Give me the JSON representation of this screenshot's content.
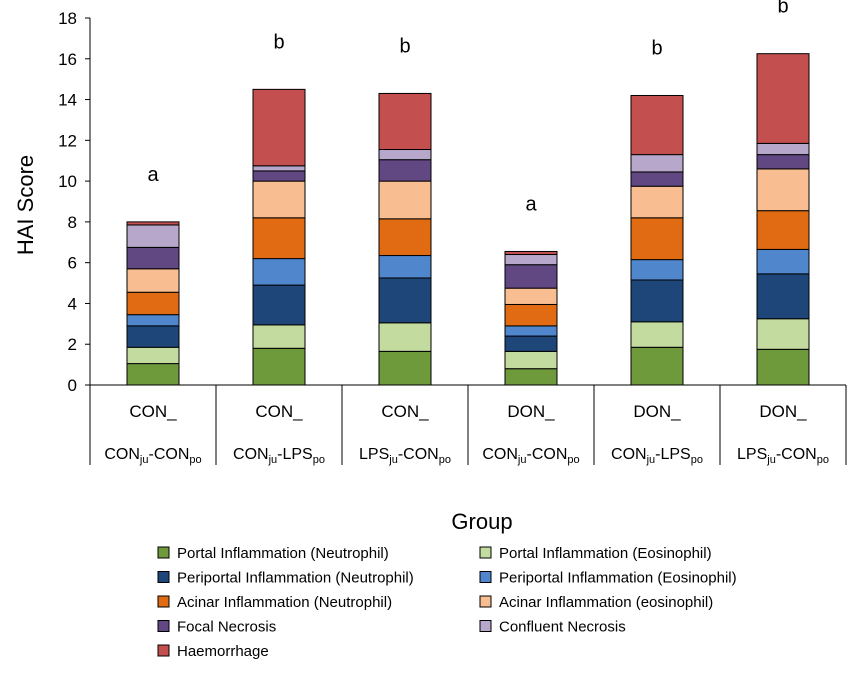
{
  "chart_data": {
    "type": "bar",
    "stacked": true,
    "ylabel": "HAI Score",
    "xlabel": "Group",
    "ylim": [
      0,
      18
    ],
    "yticks": [
      0,
      2,
      4,
      6,
      8,
      10,
      12,
      14,
      16,
      18
    ],
    "grid": false,
    "legend_position": "bottom",
    "categories": [
      {
        "top": "CON_",
        "bottom": [
          {
            "t": "CON"
          },
          {
            "t": "ju",
            "sub": true
          },
          {
            "t": "-CON"
          },
          {
            "t": "po",
            "sub": true
          }
        ]
      },
      {
        "top": "CON_",
        "bottom": [
          {
            "t": "CON"
          },
          {
            "t": "ju",
            "sub": true
          },
          {
            "t": "-LPS"
          },
          {
            "t": "po",
            "sub": true
          }
        ]
      },
      {
        "top": "CON_",
        "bottom": [
          {
            "t": "LPS"
          },
          {
            "t": "ju",
            "sub": true
          },
          {
            "t": "-CON"
          },
          {
            "t": "po",
            "sub": true
          }
        ]
      },
      {
        "top": "DON_",
        "bottom": [
          {
            "t": "CON"
          },
          {
            "t": "ju",
            "sub": true
          },
          {
            "t": "-CON"
          },
          {
            "t": "po",
            "sub": true
          }
        ]
      },
      {
        "top": "DON_",
        "bottom": [
          {
            "t": "CON"
          },
          {
            "t": "ju",
            "sub": true
          },
          {
            "t": "-LPS"
          },
          {
            "t": "po",
            "sub": true
          }
        ]
      },
      {
        "top": "DON_",
        "bottom": [
          {
            "t": "LPS"
          },
          {
            "t": "ju",
            "sub": true
          },
          {
            "t": "-CON"
          },
          {
            "t": "po",
            "sub": true
          }
        ]
      }
    ],
    "significance_letters": [
      "a",
      "b",
      "b",
      "a",
      "b",
      "b"
    ],
    "series": [
      {
        "name": "Portal Inflammation (Neutrophil)",
        "color": "#6e9a3c",
        "values": [
          1.05,
          1.8,
          1.65,
          0.8,
          1.85,
          1.75
        ]
      },
      {
        "name": "Portal Inflammation (Eosinophil)",
        "color": "#c4dba0",
        "values": [
          0.8,
          1.15,
          1.4,
          0.85,
          1.25,
          1.5
        ]
      },
      {
        "name": "Periportal Inflammation (Neutrophil)",
        "color": "#1f4678",
        "values": [
          1.05,
          1.95,
          2.2,
          0.75,
          2.05,
          2.2
        ]
      },
      {
        "name": "Periportal Inflammation (Eosinophil)",
        "color": "#4f86cc",
        "values": [
          0.55,
          1.3,
          1.1,
          0.5,
          1.0,
          1.2
        ]
      },
      {
        "name": "Acinar Inflammation (Neutrophil)",
        "color": "#e06b12",
        "values": [
          1.1,
          2.0,
          1.8,
          1.05,
          2.05,
          1.9
        ]
      },
      {
        "name": "Acinar Inflammation (eosinophil)",
        "color": "#f8be91",
        "values": [
          1.15,
          1.8,
          1.85,
          0.8,
          1.55,
          2.05
        ]
      },
      {
        "name": "Focal Necrosis",
        "color": "#614883",
        "values": [
          1.05,
          0.5,
          1.05,
          1.15,
          0.7,
          0.7
        ]
      },
      {
        "name": "Confluent Necrosis",
        "color": "#b6a7cb",
        "values": [
          1.1,
          0.25,
          0.5,
          0.5,
          0.85,
          0.55
        ]
      },
      {
        "name": "Haemorrhage",
        "color": "#c44f4f",
        "values": [
          0.15,
          3.75,
          2.75,
          0.15,
          2.9,
          4.4
        ]
      }
    ]
  }
}
